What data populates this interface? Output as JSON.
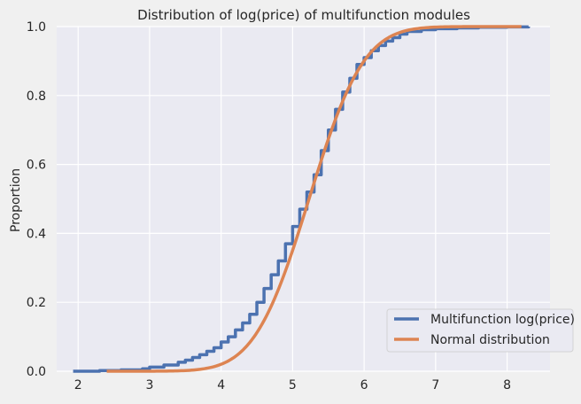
{
  "chart_data": {
    "type": "line",
    "title": "Distribution of log(price) of multifunction modules",
    "xlabel": "",
    "ylabel": "Proportion",
    "xlim": [
      1.7,
      8.6
    ],
    "ylim": [
      0.0,
      1.0
    ],
    "xticks": [
      "2",
      "3",
      "4",
      "5",
      "6",
      "7",
      "8"
    ],
    "yticks": [
      "0.0",
      "0.2",
      "0.4",
      "0.6",
      "0.8",
      "1.0"
    ],
    "grid": true,
    "legend_position": "lower-right",
    "series": [
      {
        "name": "Multifunction log(price)",
        "color": "#4c72b0",
        "points": [
          [
            1.93,
            0.0
          ],
          [
            2.3,
            0.002
          ],
          [
            2.6,
            0.004
          ],
          [
            2.9,
            0.007
          ],
          [
            3.0,
            0.012
          ],
          [
            3.2,
            0.018
          ],
          [
            3.4,
            0.026
          ],
          [
            3.5,
            0.032
          ],
          [
            3.6,
            0.04
          ],
          [
            3.7,
            0.048
          ],
          [
            3.8,
            0.058
          ],
          [
            3.9,
            0.068
          ],
          [
            4.0,
            0.085
          ],
          [
            4.1,
            0.1
          ],
          [
            4.2,
            0.12
          ],
          [
            4.3,
            0.14
          ],
          [
            4.4,
            0.165
          ],
          [
            4.5,
            0.2
          ],
          [
            4.6,
            0.24
          ],
          [
            4.7,
            0.28
          ],
          [
            4.8,
            0.32
          ],
          [
            4.9,
            0.37
          ],
          [
            5.0,
            0.42
          ],
          [
            5.1,
            0.47
          ],
          [
            5.2,
            0.52
          ],
          [
            5.3,
            0.57
          ],
          [
            5.4,
            0.64
          ],
          [
            5.5,
            0.7
          ],
          [
            5.6,
            0.76
          ],
          [
            5.7,
            0.81
          ],
          [
            5.8,
            0.85
          ],
          [
            5.9,
            0.89
          ],
          [
            6.0,
            0.91
          ],
          [
            6.1,
            0.93
          ],
          [
            6.2,
            0.945
          ],
          [
            6.3,
            0.958
          ],
          [
            6.4,
            0.968
          ],
          [
            6.5,
            0.978
          ],
          [
            6.6,
            0.986
          ],
          [
            6.8,
            0.991
          ],
          [
            7.0,
            0.994
          ],
          [
            7.3,
            0.996
          ],
          [
            7.6,
            0.998
          ],
          [
            8.0,
            0.999
          ],
          [
            8.3,
            1.0
          ]
        ]
      },
      {
        "name": "Normal distribution",
        "color": "#dd8452",
        "mean": 5.23,
        "std": 0.6,
        "xrange": [
          2.4,
          8.2
        ]
      }
    ]
  }
}
